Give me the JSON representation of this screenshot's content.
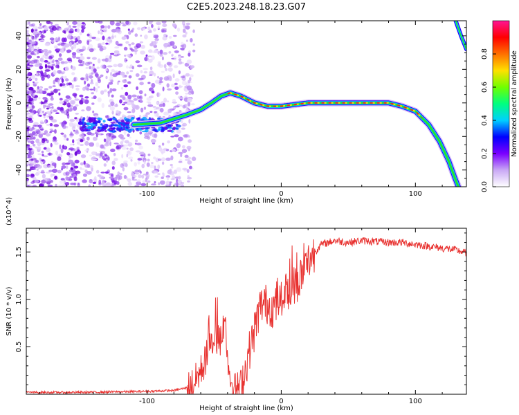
{
  "title": "C2E5.2023.248.18.23.G07",
  "chart_data": [
    {
      "type": "heatmap",
      "xlabel": "Height of straight line (km)",
      "ylabel": "Frequency (Hz)",
      "xlim": [
        -190,
        138
      ],
      "ylim": [
        -50,
        49
      ],
      "xticks": [
        -100,
        0,
        100
      ],
      "yticks": [
        -40,
        -20,
        0,
        20,
        40
      ],
      "colorbar": {
        "label": "Normalized spectral amplitude",
        "range": [
          0,
          1
        ],
        "ticks": [
          "0.0",
          "0.2",
          "0.4",
          "0.6",
          "0.8"
        ],
        "colormap": [
          "#ffffff",
          "#c9a8f5",
          "#7a00ff",
          "#0000ff",
          "#00d0ff",
          "#00ff7f",
          "#70ff00",
          "#ffe000",
          "#ff7000",
          "#ff0000",
          "#ff1493"
        ]
      },
      "doppler_track": {
        "height_km": [
          -110,
          -90,
          -78,
          -70,
          -60,
          -52,
          -45,
          -38,
          -30,
          -20,
          -10,
          0,
          20,
          50,
          80,
          90,
          100,
          110,
          118,
          125,
          130,
          132
        ],
        "frequency_hz": [
          -13,
          -12,
          -9,
          -7,
          -4,
          0,
          4,
          6,
          4,
          0,
          -2,
          -2,
          0,
          0,
          0,
          -2,
          -5,
          -13,
          -23,
          -35,
          -46,
          -50
        ]
      },
      "second_trace": {
        "height_km": [
          130,
          134,
          138
        ],
        "frequency_hz": [
          49,
          40,
          32
        ]
      },
      "noise_extent_km": [
        -190,
        -75
      ],
      "noise_band_center_hz": -13
    },
    {
      "type": "line",
      "xlabel": "Height of straight line (km)",
      "ylabel": "SNR (10 * v/v)",
      "yscale_label": "(x10^4)",
      "xlim": [
        -190,
        138
      ],
      "ylim": [
        0,
        1.75
      ],
      "xticks": [
        -100,
        0,
        100
      ],
      "yticks": [
        "0.5",
        "1.0",
        "1.5"
      ],
      "color": "#e8312f",
      "x": [
        -190,
        -150,
        -100,
        -80,
        -70,
        -65,
        -58,
        -52,
        -48,
        -44,
        -42,
        -40,
        -37,
        -34,
        -30,
        -27,
        -24,
        -21,
        -18,
        -15,
        -10,
        -5,
        0,
        5,
        10,
        15,
        20,
        25,
        30,
        35,
        40,
        50,
        60,
        70,
        80,
        90,
        100,
        110,
        120,
        130,
        138
      ],
      "y": [
        0.02,
        0.02,
        0.03,
        0.04,
        0.07,
        0.12,
        0.3,
        0.55,
        0.6,
        0.55,
        0.9,
        0.35,
        0.12,
        0.05,
        0.1,
        0.25,
        0.45,
        0.6,
        0.8,
        0.95,
        0.95,
        0.9,
        1.0,
        1.1,
        1.15,
        1.25,
        1.4,
        1.5,
        1.58,
        1.6,
        1.62,
        1.6,
        1.62,
        1.61,
        1.6,
        1.6,
        1.58,
        1.56,
        1.54,
        1.52,
        1.49
      ]
    }
  ]
}
